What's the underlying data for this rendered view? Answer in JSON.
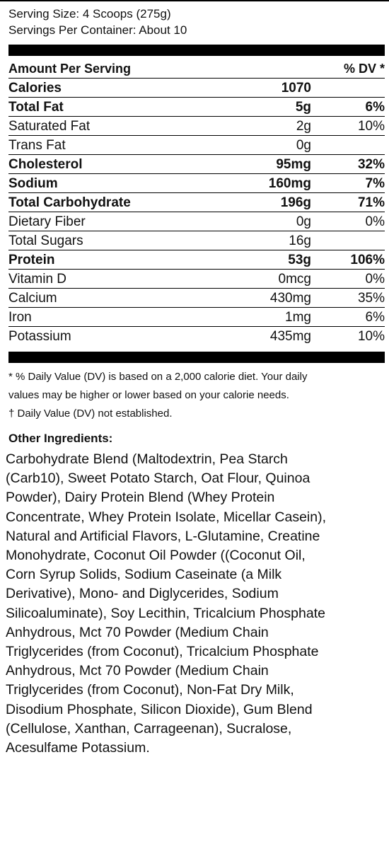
{
  "serving": {
    "size": "Serving Size: 4 Scoops (275g)",
    "per_container": "Servings Per Container: About 10"
  },
  "table": {
    "header_amount": "Amount Per Serving",
    "header_dv": "% DV *",
    "rows": [
      {
        "name": "Calories",
        "amount": "1070",
        "dv": "",
        "bold": true
      },
      {
        "name": "Total Fat",
        "amount": "5g",
        "dv": "6%",
        "bold": true
      },
      {
        "name": "Saturated Fat",
        "amount": "2g",
        "dv": "10%",
        "bold": false
      },
      {
        "name": "Trans Fat",
        "amount": "0g",
        "dv": "",
        "bold": false
      },
      {
        "name": "Cholesterol",
        "amount": "95mg",
        "dv": "32%",
        "bold": true
      },
      {
        "name": "Sodium",
        "amount": "160mg",
        "dv": "7%",
        "bold": true
      },
      {
        "name": "Total Carbohydrate",
        "amount": "196g",
        "dv": "71%",
        "bold": true
      },
      {
        "name": "Dietary Fiber",
        "amount": "0g",
        "dv": "0%",
        "bold": false
      },
      {
        "name": "Total Sugars",
        "amount": "16g",
        "dv": "",
        "bold": false
      },
      {
        "name": "Protein",
        "amount": "53g",
        "dv": "106%",
        "bold": true
      },
      {
        "name": "Vitamin D",
        "amount": "0mcg",
        "dv": "0%",
        "bold": false
      },
      {
        "name": "Calcium",
        "amount": "430mg",
        "dv": "35%",
        "bold": false
      },
      {
        "name": "Iron",
        "amount": "1mg",
        "dv": "6%",
        "bold": false
      },
      {
        "name": "Potassium",
        "amount": "435mg",
        "dv": "10%",
        "bold": false
      }
    ]
  },
  "footnote": {
    "line1": "* % Daily Value (DV) is based on a 2,000 calorie diet. Your daily",
    "line2": "values may be higher or lower based on your calorie needs.",
    "line3": "† Daily Value (DV) not established."
  },
  "ingredients": {
    "title": "Other Ingredients:",
    "lines": [
      " Carbohydrate Blend (Maltodextrin, Pea Starch",
      " (Carb10), Sweet Potato Starch, Oat Flour, Quinoa",
      " Powder), Dairy Protein Blend (Whey Protein",
      "Concentrate, Whey Protein Isolate, Micellar Casein),",
      "Natural and Artificial Flavors, L-Glutamine, Creatine",
      "Monohydrate, Coconut Oil Powder ((Coconut Oil,",
      "Corn Syrup Solids, Sodium Caseinate (a Milk",
      "Derivative), Mono- and Diglycerides, Sodium",
      "Silicoaluminate), Soy Lecithin, Tricalcium Phosphate",
      "Anhydrous, Mct 70 Powder (Medium Chain",
      "Triglycerides (from Coconut), Tricalcium Phosphate",
      "Anhydrous, Mct 70 Powder (Medium Chain",
      "Triglycerides (from Coconut), Non-Fat Dry Milk,",
      "Disodium Phosphate, Silicon Dioxide), Gum Blend",
      "(Cellulose, Xanthan, Carrageenan), Sucralose,",
      "Acesulfame Potassium."
    ]
  }
}
